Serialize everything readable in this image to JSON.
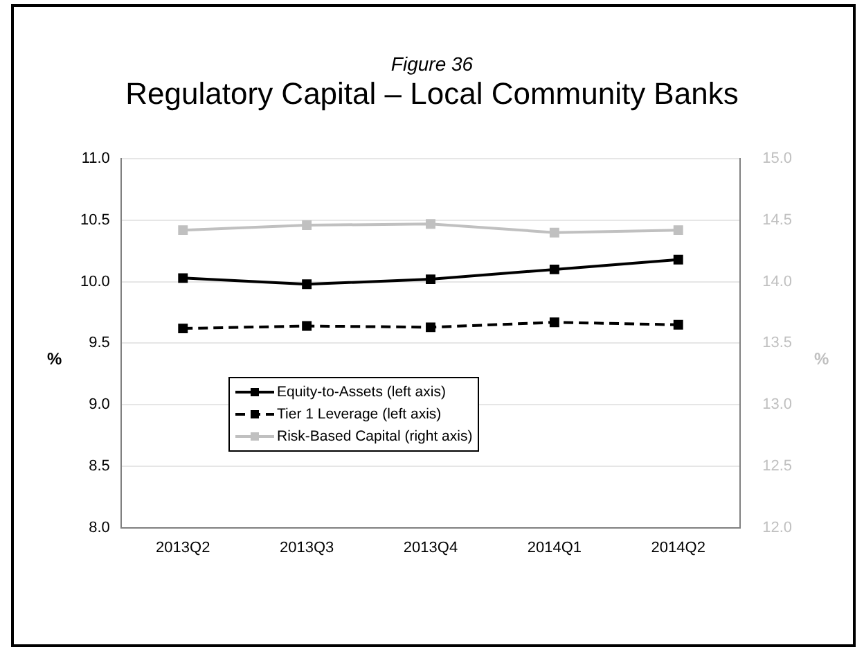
{
  "chart_data": {
    "type": "line",
    "title": "Regulatory Capital – Local Community Banks",
    "subtitle": "Figure 36",
    "ylabel": "%",
    "y2label": "%",
    "categories": [
      "2013Q2",
      "2013Q3",
      "2013Q4",
      "2014Q1",
      "2014Q2"
    ],
    "series": [
      {
        "name": "Equity-to-Assets (left axis)",
        "color": "#000000",
        "values": [
          10.03,
          9.98,
          10.02,
          10.1,
          10.18
        ]
      },
      {
        "name": "Tier 1 Leverage (left axis)",
        "color": "#000000",
        "line_style": "dashed",
        "values": [
          9.62,
          9.64,
          9.63,
          9.67,
          9.65
        ]
      },
      {
        "name": "Risk-Based Capital (right axis)",
        "color": "#c0c0c0",
        "axis": "y2",
        "values": [
          14.42,
          14.46,
          14.47,
          14.4,
          14.42
        ]
      }
    ],
    "ylim": [
      8.0,
      11.0
    ],
    "yticks": [
      {
        "value": 8,
        "label": "8.0"
      },
      {
        "value": 8.5,
        "label": "8.5"
      },
      {
        "value": 9,
        "label": "9.0"
      },
      {
        "value": 9.5,
        "label": "9.5"
      },
      {
        "value": 10,
        "label": "10.0"
      },
      {
        "value": 10.5,
        "label": "10.5"
      },
      {
        "value": 11,
        "label": "11.0"
      }
    ],
    "y2lim": [
      12.0,
      15.0
    ],
    "y2ticks": [
      {
        "value": 12,
        "label": "12.0"
      },
      {
        "value": 12.5,
        "label": "12.5"
      },
      {
        "value": 13,
        "label": "13.0"
      },
      {
        "value": 13.5,
        "label": "13.5"
      },
      {
        "value": 14,
        "label": "14.0"
      },
      {
        "value": 14.5,
        "label": "14.5"
      },
      {
        "value": 15,
        "label": "15.0"
      }
    ],
    "grid": "y",
    "legend": "left",
    "marker": "square"
  }
}
